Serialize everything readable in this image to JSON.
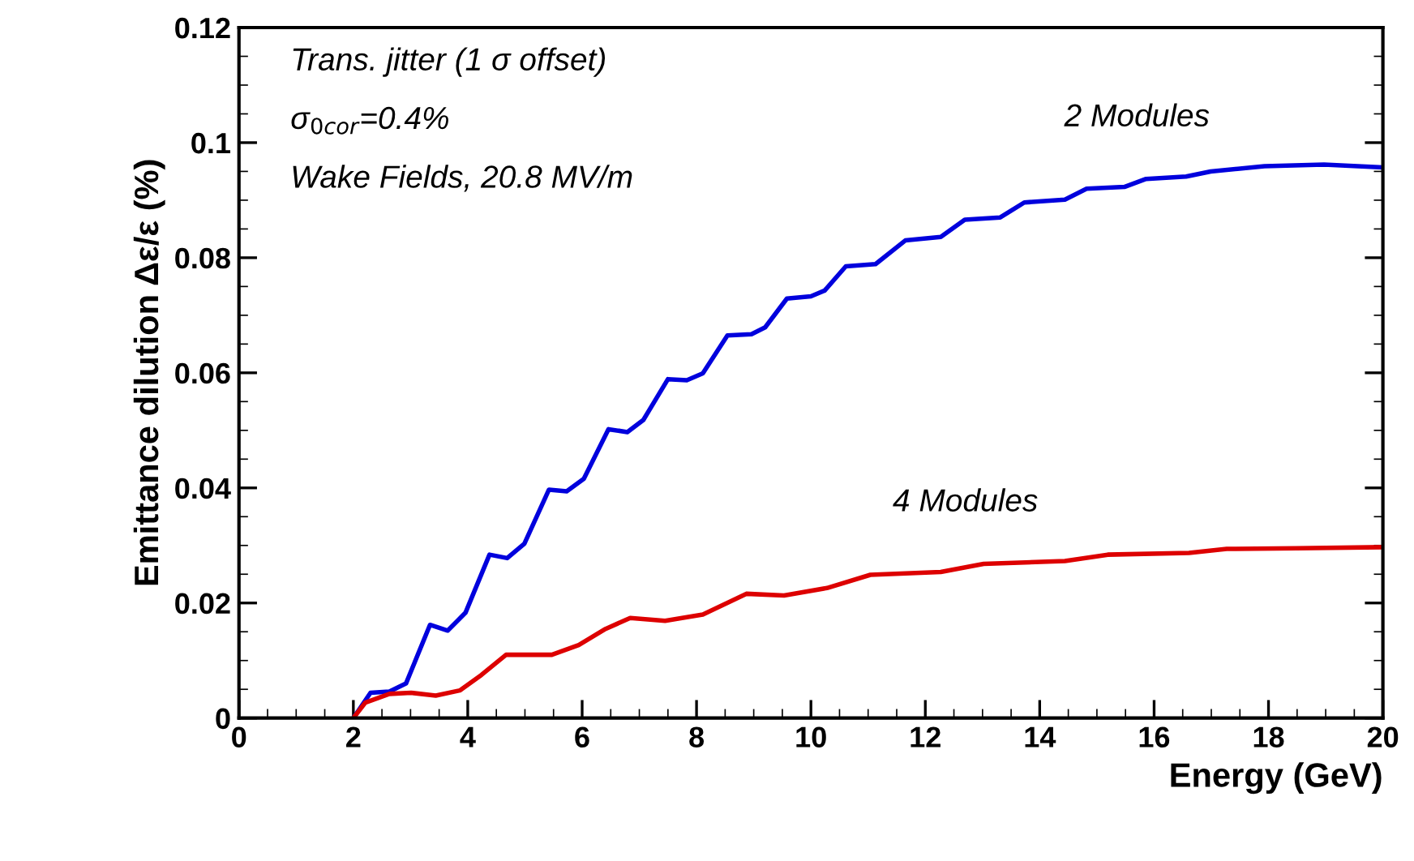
{
  "chart_data": {
    "type": "line",
    "xlabel": "Energy (GeV)",
    "ylabel": "Emittance dilution Δε/ε (%)",
    "xlim": [
      0,
      20
    ],
    "xticks": [
      0,
      2,
      4,
      6,
      8,
      10,
      12,
      14,
      16,
      18,
      20
    ],
    "ylim": [
      0,
      0.12
    ],
    "yticks": [
      0,
      0.02,
      0.04,
      0.06,
      0.08,
      0.1,
      0.12
    ],
    "grid": false,
    "legend": false,
    "marker": "none",
    "line_style": "solid",
    "annotations": [
      "Trans. jitter (1 σ offset)",
      "σ$_{0cor}$=0.4%",
      "Wake Fields, 20.8 MV/m"
    ],
    "series": [
      {
        "name": "2 Modules",
        "color": "#0000dd",
        "x": [
          2.0,
          2.3,
          2.63,
          2.92,
          3.34,
          3.65,
          3.96,
          4.38,
          4.69,
          4.99,
          5.42,
          5.73,
          6.03,
          6.46,
          6.79,
          7.07,
          7.5,
          7.83,
          8.11,
          8.54,
          8.96,
          9.2,
          9.58,
          10.0,
          10.24,
          10.61,
          11.13,
          11.65,
          12.27,
          12.69,
          13.31,
          13.73,
          14.44,
          14.82,
          15.48,
          15.86,
          16.56,
          16.99,
          17.93,
          18.97,
          20.0
        ],
        "values": [
          0,
          0.0044,
          0.0046,
          0.006,
          0.0162,
          0.0152,
          0.0183,
          0.0284,
          0.0278,
          0.0303,
          0.0397,
          0.0394,
          0.0416,
          0.0502,
          0.0497,
          0.0518,
          0.0589,
          0.0587,
          0.0599,
          0.0665,
          0.0667,
          0.0679,
          0.0729,
          0.0733,
          0.0743,
          0.0785,
          0.0789,
          0.083,
          0.0836,
          0.0866,
          0.087,
          0.0896,
          0.0901,
          0.092,
          0.0923,
          0.0937,
          0.0941,
          0.095,
          0.0959,
          0.0962,
          0.0957
        ]
      },
      {
        "name": "4 Modules",
        "color": "#dd0000",
        "x": [
          2.0,
          2.21,
          2.63,
          3.01,
          3.44,
          3.86,
          4.24,
          4.67,
          5.09,
          5.47,
          5.94,
          6.41,
          6.84,
          7.45,
          8.11,
          8.87,
          9.53,
          10.28,
          11.04,
          12.27,
          13.02,
          14.44,
          15.19,
          16.61,
          17.27,
          18.5,
          20.0
        ],
        "values": [
          0,
          0.0027,
          0.0042,
          0.0044,
          0.0039,
          0.0048,
          0.0075,
          0.011,
          0.011,
          0.011,
          0.0127,
          0.0155,
          0.0174,
          0.0169,
          0.018,
          0.0216,
          0.0213,
          0.0226,
          0.0249,
          0.0254,
          0.0268,
          0.0273,
          0.0284,
          0.0287,
          0.0294,
          0.0295,
          0.0297
        ]
      }
    ]
  }
}
